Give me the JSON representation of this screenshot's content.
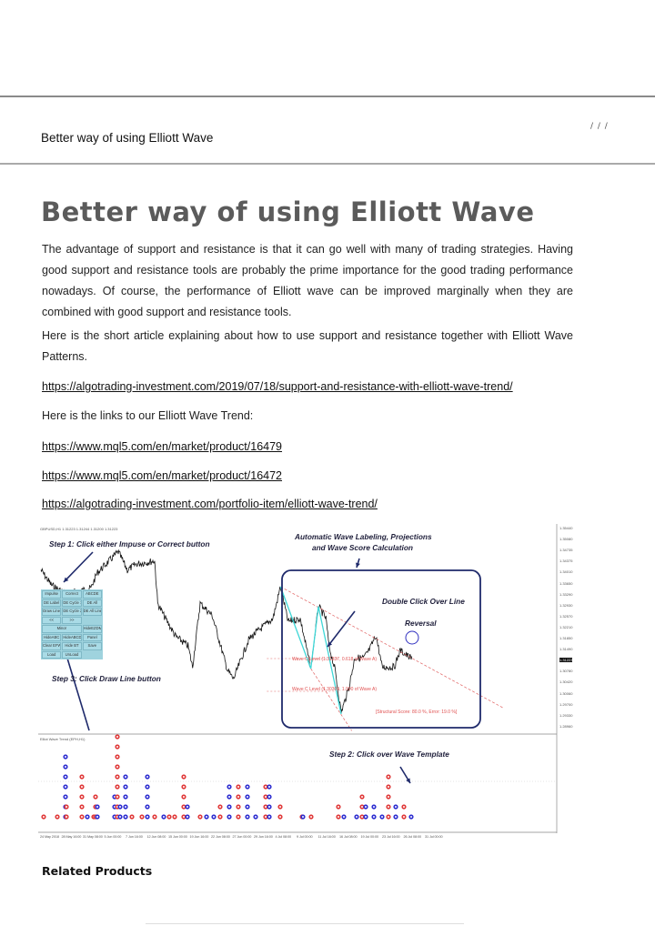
{
  "header": {
    "breadcrumb": "/ / /",
    "title": "Better way of using Elliott Wave"
  },
  "article": {
    "title": "Better way of using Elliott Wave",
    "paragraphs": [
      "The advantage of support and resistance is that it can go well with many of trading strategies. Having good support and resistance tools are probably the prime importance for the good trading performance nowadays. Of course, the performance of Elliott wave can be improved marginally when they are combined with good support and resistance tools.",
      "Here is the short article explaining about how to use support and resistance together with Elliott Wave Patterns."
    ],
    "link1": "https://algotrading-investment.com/2019/07/18/support-and-resistance-with-elliott-wave-trend/",
    "paragraph3": "Here is the links to our Elliott Wave Trend:",
    "links": [
      "https://www.mql5.com/en/market/product/16479",
      "https://www.mql5.com/en/market/product/16472",
      "https://algotrading-investment.com/portfolio-item/elliott-wave-trend/"
    ]
  },
  "screenshot": {
    "symbol_header": "GBPUSD,H1  1.31223 1.31244 1.31200 1.31223",
    "step1": "Step 1: Click either Impuse or Correct button",
    "step2": "Step 2: Click over Wave Template",
    "step3": "Step 3: Click Draw Line button",
    "auto_label_1": "Automatic Wave Labeling, Projections",
    "auto_label_2": "and Wave Score Calculation",
    "double_click": "Double Click Over Line",
    "reversal": "Reversal",
    "wave_c_1": "Wave C Level (1.31337, 0.618 of Wave A)",
    "wave_c_2": "Wave C Level (1.30304, 1.000 of Wave A)",
    "structural_score": "[Structural Score: 80.0 %, Error: 19.0 %]",
    "indicator_title": "Elliot Wave Trend (EPH,H1)",
    "buttons": [
      "Impulse",
      "Correct",
      "ABCDE",
      "DE Label",
      "DE Cycle 1",
      "DE All",
      "Draw Line",
      "DE Cycle 2",
      "DE All Line",
      "<<",
      ">>",
      "Minor",
      "HideEZDM",
      "HideABC",
      "HideABCDE",
      "Panel",
      "Clear EFW",
      "Hide BT",
      "Save",
      "Load",
      "UnLoad"
    ],
    "price_axis": [
      "1.35440",
      "1.35080",
      "1.34735",
      "1.34375",
      "1.34010",
      "1.33650",
      "1.33290",
      "1.32930",
      "1.32570",
      "1.32210",
      "1.31850",
      "1.31490",
      "1.31223",
      "1.30780",
      "1.30420",
      "1.30060",
      "1.29700",
      "1.29330",
      "1.28960"
    ],
    "current_price": "1.31223",
    "date_axis": [
      "24 May 2018",
      "28 May 16:00",
      "31 May 08:00",
      "5 Jun 00:00",
      "7 Jun 16:00",
      "12 Jun 08:00",
      "15 Jun 00:00",
      "19 Jun 16:00",
      "22 Jun 08:00",
      "27 Jun 00:00",
      "29 Jun 16:00",
      "4 Jul 08:00",
      "9 Jul 00:00",
      "11 Jul 16:00",
      "16 Jul 08:00",
      "19 Jul 00:00",
      "23 Jul 16:00",
      "26 Jul 08:00",
      "31 Jul 00:00"
    ],
    "colors": {
      "frame": "#1f2a6b",
      "wave": "#3fd7d7",
      "projection": "#e06060",
      "dot_red": "#e03a3a",
      "dot_blue": "#2f2fd0",
      "buttons": "#a9dbe6"
    }
  },
  "related": {
    "title": "Related Products"
  }
}
